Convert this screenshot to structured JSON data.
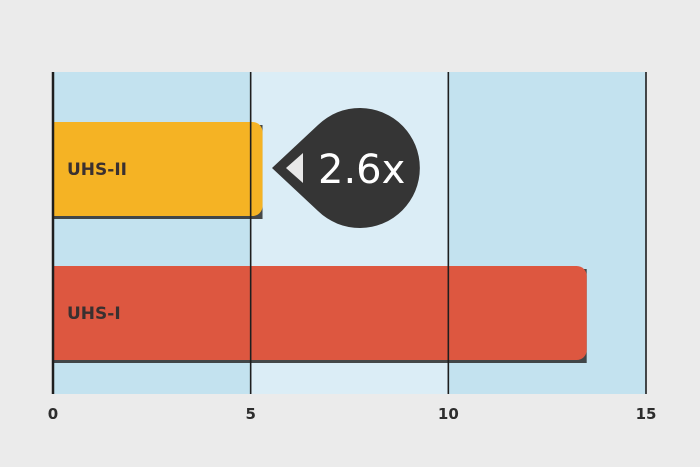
{
  "chart_data": {
    "type": "bar",
    "orientation": "horizontal",
    "categories": [
      "UHS-II",
      "UHS-I"
    ],
    "values": [
      5.3,
      13.5
    ],
    "xlim": [
      0,
      15
    ],
    "xticks": [
      "0",
      "5",
      "10",
      "15"
    ],
    "title": "",
    "xlabel": "",
    "ylabel": "",
    "grid": true,
    "legend": "none",
    "bar_colors": [
      "#f5b324",
      "#dd5740"
    ],
    "band_colors": [
      "#c3e2ef",
      "#dbedf6"
    ],
    "annotation": {
      "text": "2.6x",
      "color": "#353535"
    }
  }
}
